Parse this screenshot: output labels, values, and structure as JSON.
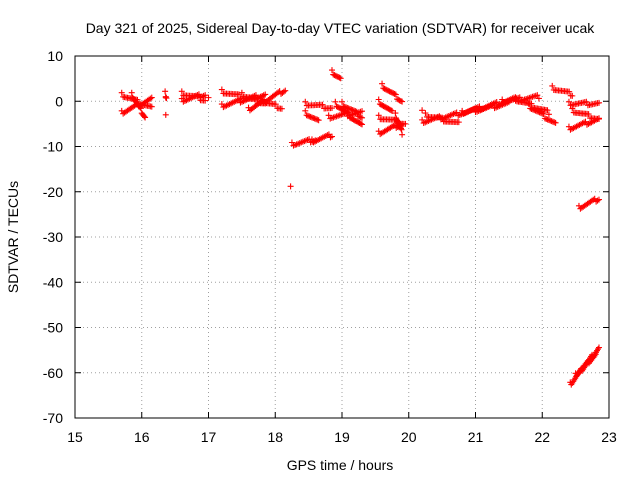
{
  "chart_data": {
    "type": "scatter",
    "title": "Day 321 of 2025, Sidereal Day-to-day VTEC variation (SDTVAR) for receiver ucak",
    "xlabel": "GPS time / hours",
    "ylabel": "SDTVAR / TECUs",
    "xlim": [
      15,
      23
    ],
    "ylim": [
      -70,
      10
    ],
    "xticks": [
      15,
      16,
      17,
      18,
      19,
      20,
      21,
      22,
      23
    ],
    "yticks": [
      10,
      0,
      -10,
      -20,
      -30,
      -40,
      -50,
      -60,
      -70
    ],
    "grid": true,
    "marker": "plus",
    "color": "#ff0000",
    "segments": [
      {
        "x0": 15.7,
        "x1": 16.15,
        "y0": 1.5,
        "y1": -1.5
      },
      {
        "x0": 15.7,
        "x1": 16.15,
        "y0": -2.5,
        "y1": 0.5
      },
      {
        "x0": 15.85,
        "x1": 16.05,
        "y0": 1.5,
        "y1": -3.5
      },
      {
        "x0": 16.35,
        "x1": 16.37,
        "y0": 1.8,
        "y1": 1.0
      },
      {
        "x0": 16.6,
        "x1": 16.95,
        "y0": 1.8,
        "y1": 0.3
      },
      {
        "x0": 16.6,
        "x1": 16.95,
        "y0": 0.2,
        "y1": 1.5
      },
      {
        "x0": 17.2,
        "x1": 17.85,
        "y0": 2.2,
        "y1": -0.5
      },
      {
        "x0": 17.2,
        "x1": 17.85,
        "y0": -1.0,
        "y1": 1.5
      },
      {
        "x0": 17.5,
        "x1": 18.1,
        "y0": 1.5,
        "y1": -1.5
      },
      {
        "x0": 17.6,
        "x1": 18.15,
        "y0": -1.8,
        "y1": 2.5
      },
      {
        "x0": 18.25,
        "x1": 18.6,
        "y0": -9.5,
        "y1": -8.5
      },
      {
        "x0": 18.55,
        "x1": 18.85,
        "y0": -8.8,
        "y1": -7.5
      },
      {
        "x0": 18.45,
        "x1": 18.85,
        "y0": -0.5,
        "y1": -1.5
      },
      {
        "x0": 18.45,
        "x1": 18.65,
        "y0": -2.5,
        "y1": -4.5
      },
      {
        "x0": 18.85,
        "x1": 18.98,
        "y0": 6.5,
        "y1": 5.0
      },
      {
        "x0": 18.9,
        "x1": 19.3,
        "y0": -0.5,
        "y1": -5.5
      },
      {
        "x0": 18.8,
        "x1": 19.3,
        "y0": -3.5,
        "y1": -2.5
      },
      {
        "x0": 19.0,
        "x1": 19.3,
        "y0": -0.5,
        "y1": -3.5
      },
      {
        "x0": 19.6,
        "x1": 19.9,
        "y0": 3.5,
        "y1": 0.0
      },
      {
        "x0": 19.55,
        "x1": 19.75,
        "y0": 0.0,
        "y1": -2.5
      },
      {
        "x0": 19.55,
        "x1": 19.95,
        "y0": -3.5,
        "y1": -5.0
      },
      {
        "x0": 19.55,
        "x1": 19.9,
        "y0": -7.0,
        "y1": -5.0
      },
      {
        "x0": 19.8,
        "x1": 19.9,
        "y0": -3.0,
        "y1": -7.0
      },
      {
        "x0": 20.2,
        "x1": 21.0,
        "y0": -4.5,
        "y1": -2.0
      },
      {
        "x0": 20.25,
        "x1": 20.75,
        "y0": -3.0,
        "y1": -5.0
      },
      {
        "x0": 20.8,
        "x1": 21.6,
        "y0": -2.5,
        "y1": 0.5
      },
      {
        "x0": 21.0,
        "x1": 21.5,
        "y0": -2.0,
        "y1": -0.5
      },
      {
        "x0": 21.4,
        "x1": 21.95,
        "y0": 0.0,
        "y1": 1.0
      },
      {
        "x0": 21.6,
        "x1": 22.1,
        "y0": 0.5,
        "y1": -2.5
      },
      {
        "x0": 21.8,
        "x1": 22.2,
        "y0": -1.0,
        "y1": -5.0
      },
      {
        "x0": 22.15,
        "x1": 22.45,
        "y0": 3.0,
        "y1": 1.5
      },
      {
        "x0": 22.4,
        "x1": 22.85,
        "y0": -0.5,
        "y1": -0.5
      },
      {
        "x0": 22.4,
        "x1": 22.85,
        "y0": -6.0,
        "y1": -4.0
      },
      {
        "x0": 22.45,
        "x1": 22.85,
        "y0": -2.0,
        "y1": -4.0
      },
      {
        "x0": 22.55,
        "x1": 22.85,
        "y0": -23.5,
        "y1": -21.5
      },
      {
        "x0": 22.42,
        "x1": 22.85,
        "y0": -62.5,
        "y1": -54.5
      },
      {
        "x0": 22.5,
        "x1": 22.8,
        "y0": -60.5,
        "y1": -56.0
      }
    ],
    "isolated_points": [
      {
        "x": 16.36,
        "y": -3.0
      },
      {
        "x": 16.36,
        "y": 0.8
      },
      {
        "x": 17.0,
        "y": 0.8
      },
      {
        "x": 18.23,
        "y": -18.8
      },
      {
        "x": 20.2,
        "y": -2.0
      }
    ]
  }
}
